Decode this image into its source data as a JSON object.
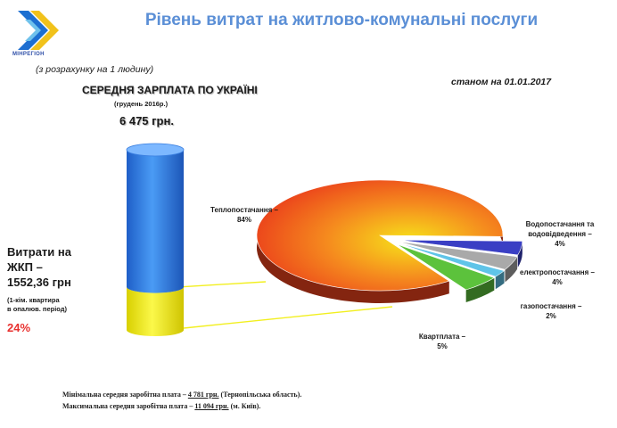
{
  "header": {
    "logo_text": "МІНРЕГІОН",
    "title": "Рівень витрат на житлово-комунальні послуги",
    "subtitle": "(з розрахунку на 1 людину)",
    "as_of": "станом на 01.01.2017"
  },
  "salary": {
    "heading": "СЕРЕДНЯ ЗАРПЛАТА ПО УКРАЇНІ",
    "period": "(грудень 2016р.)",
    "value": "6 475 грн."
  },
  "expenses": {
    "line1": "Витрати на",
    "line2": "ЖКП –",
    "line3": "1552,36 грн",
    "note1": "(1-кім. квартира",
    "note2": "в опалюв. період)",
    "percent": "24%"
  },
  "chart_data": [
    {
      "type": "bar",
      "categories": [
        "СЕРЕДНЯ ЗАРПЛАТА ПО УКРАЇНІ"
      ],
      "series": [
        {
          "name": "Витрати на ЖКП",
          "values": [
            1552.36
          ]
        },
        {
          "name": "",
          "values": [
            4922.64
          ]
        }
      ],
      "total": 6475,
      "colors": {
        "expenses": "#f2ef1f",
        "rest": "#2f7fe8"
      }
    },
    {
      "type": "pie",
      "slices": [
        {
          "label": "Теплопостачання –",
          "pct_label": "84%",
          "value": 84,
          "color": "#f0441d"
        },
        {
          "label": "Водопостачання та водовідведення –",
          "pct_label": "4%",
          "value": 4,
          "color": "#3a3fc4"
        },
        {
          "label": "електропостачання –",
          "pct_label": "4%",
          "value": 4,
          "color": "#a9a9a9"
        },
        {
          "label": "газопостачання –",
          "pct_label": "2%",
          "value": 2,
          "color": "#5fc4e8"
        },
        {
          "label": "Квартплата –",
          "pct_label": "5%",
          "value": 5,
          "color": "#5cc23c"
        }
      ]
    }
  ],
  "footer": {
    "min_prefix": "Мінімальна  середня заробітна плата – ",
    "min_value": "4 781 грн.",
    "min_region": " (Тернопільська область).",
    "max_prefix": "Максимальна середня заробітна плата – ",
    "max_value": "11 094 грн.",
    "max_region": " (м. Київ)."
  }
}
